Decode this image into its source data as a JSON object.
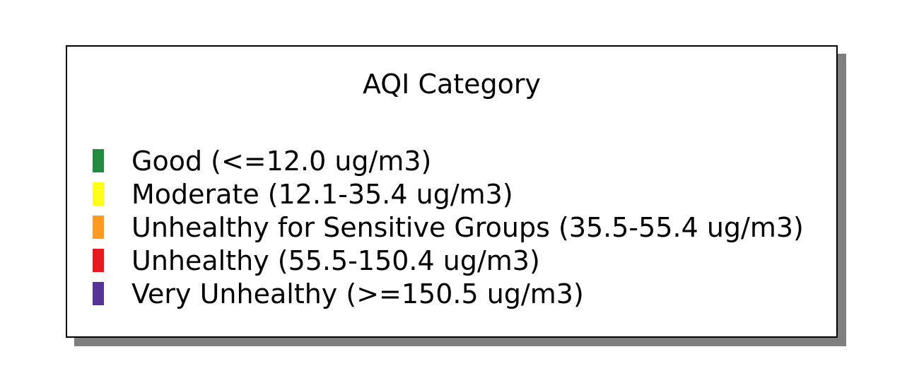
{
  "legend": {
    "title": "AQI Category",
    "items": [
      {
        "label": "Good (<=12.0 ug/m3)",
        "color": "#228B3F"
      },
      {
        "label": "Moderate (12.1-35.4 ug/m3)",
        "color": "#FFFF1A"
      },
      {
        "label": "Unhealthy for Sensitive Groups (35.5-55.4 ug/m3)",
        "color": "#FF9922"
      },
      {
        "label": "Unhealthy (55.5-150.4 ug/m3)",
        "color": "#E8191E"
      },
      {
        "label": "Very Unhealthy (>=150.5 ug/m3)",
        "color": "#553399"
      }
    ]
  }
}
